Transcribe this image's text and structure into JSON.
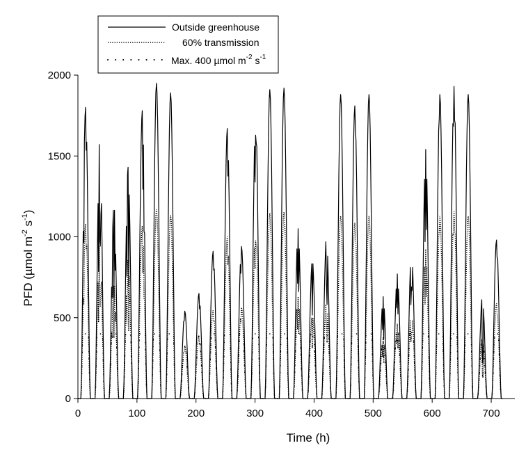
{
  "chart_data": {
    "type": "line",
    "xlabel": "Time (h)",
    "ylabel": {
      "base": "PFD (µmol m",
      "sup1": "-2",
      "mid": " s",
      "sup2": "-1",
      "end": ")"
    },
    "xlim": [
      0,
      740
    ],
    "ylim": [
      0,
      2000
    ],
    "x_ticks": [
      0,
      100,
      200,
      300,
      400,
      500,
      600,
      700
    ],
    "y_ticks": [
      0,
      500,
      1000,
      1500,
      2000
    ],
    "grid": false,
    "legend_position": "top-left",
    "transmission": 0.6,
    "cap": 400,
    "series": [
      {
        "name": "Outside greenhouse",
        "style": "solid"
      },
      {
        "name": "60% transmission",
        "style": "dotted"
      },
      {
        "name": "Max. 400 µmol m-2 s-1",
        "style": "sparse-dotted",
        "label_parts": {
          "base": "Max. 400 µmol m",
          "sup1": "-2",
          "mid": " s",
          "sup2": "-1"
        }
      }
    ],
    "days": [
      {
        "peak": 1800,
        "dips": [
          [
            -3,
            0.72
          ],
          [
            1,
            0.88
          ]
        ]
      },
      {
        "peak": 1620,
        "dips": [
          [
            -2,
            0.55
          ],
          [
            0.5,
            0.6
          ],
          [
            2,
            0.8
          ]
        ]
      },
      {
        "peak": 1200,
        "dips": [
          [
            -3,
            0.7
          ],
          [
            0,
            0.52
          ],
          [
            2,
            0.75
          ]
        ]
      },
      {
        "peak": 1430,
        "dips": [
          [
            -2,
            0.6
          ],
          [
            1,
            0.5
          ]
        ]
      },
      {
        "peak": 1780,
        "dips": [
          [
            1,
            0.75
          ],
          [
            3,
            0.78
          ]
        ]
      },
      {
        "peak": 1950,
        "dips": []
      },
      {
        "peak": 1890,
        "dips": []
      },
      {
        "peak": 540,
        "dips": [
          [
            -1,
            0.92
          ]
        ]
      },
      {
        "peak": 650,
        "dips": [
          [
            1,
            0.88
          ]
        ]
      },
      {
        "peak": 910,
        "dips": [
          [
            1,
            0.9
          ]
        ]
      },
      {
        "peak": 1670,
        "dips": [
          [
            1,
            0.85
          ]
        ]
      },
      {
        "peak": 940,
        "dips": [
          [
            -1,
            0.85
          ]
        ]
      },
      {
        "peak": 1770,
        "dips": [
          [
            -1,
            0.78
          ],
          [
            0.5,
            0.92
          ]
        ]
      },
      {
        "peak": 1910,
        "dips": []
      },
      {
        "peak": 1920,
        "dips": []
      },
      {
        "peak": 1050,
        "dips": [
          [
            -1,
            0.7
          ],
          [
            1,
            0.65
          ]
        ]
      },
      {
        "peak": 860,
        "dips": [
          [
            0,
            0.6
          ]
        ]
      },
      {
        "peak": 1000,
        "dips": [
          [
            0,
            0.7
          ],
          [
            1,
            0.6
          ]
        ]
      },
      {
        "peak": 1880,
        "dips": []
      },
      {
        "peak": 1810,
        "dips": [
          [
            1,
            0.95
          ]
        ]
      },
      {
        "peak": 1880,
        "dips": []
      },
      {
        "peak": 630,
        "dips": [
          [
            -1,
            0.7
          ],
          [
            1,
            0.6
          ]
        ]
      },
      {
        "peak": 770,
        "dips": [
          [
            -1,
            0.75
          ],
          [
            1,
            0.7
          ]
        ]
      },
      {
        "peak": 920,
        "dips": [
          [
            -1,
            0.65
          ],
          [
            0.5,
            0.75
          ]
        ]
      },
      {
        "peak": 1540,
        "dips": [
          [
            -1,
            0.65
          ],
          [
            1,
            0.7
          ]
        ]
      },
      {
        "peak": 1880,
        "dips": [
          [
            -1,
            0.95
          ]
        ]
      },
      {
        "peak": 1930,
        "dips": [
          [
            -1,
            0.9
          ],
          [
            1,
            0.92
          ]
        ]
      },
      {
        "peak": 1880,
        "dips": []
      },
      {
        "peak": 630,
        "dips": [
          [
            0,
            0.4
          ],
          [
            1,
            0.35
          ]
        ]
      },
      {
        "peak": 980,
        "dips": [
          [
            1,
            0.92
          ]
        ]
      }
    ]
  }
}
